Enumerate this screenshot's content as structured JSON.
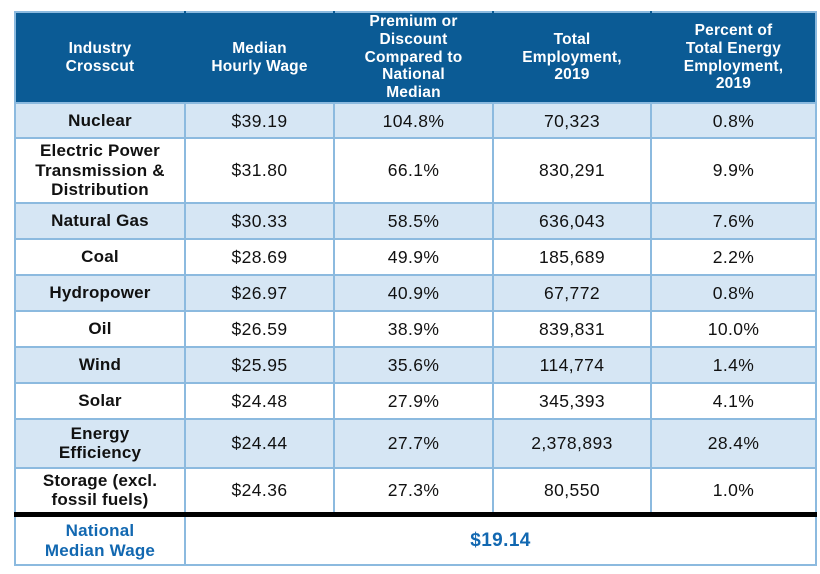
{
  "colors": {
    "header_bg": "#0B5B95",
    "header_text": "#FFFFFF",
    "row_alt_bg": "#D6E6F4",
    "grid_border": "#8CBADF",
    "separator_bar": "#000000",
    "footer_text": "#1268B1",
    "body_text": "#111111"
  },
  "table": {
    "columns": [
      "Industry\nCrosscut",
      "Median\nHourly Wage",
      "Premium or\nDiscount\nCompared to\nNational\nMedian",
      "Total\nEmployment,\n2019",
      "Percent of\nTotal Energy\nEmployment,\n2019"
    ],
    "rows": [
      {
        "industry": "Nuclear",
        "wage": "$39.19",
        "premium": "104.8%",
        "employment": "70,323",
        "share": "0.8%"
      },
      {
        "industry": "Electric Power\nTransmission &\nDistribution",
        "wage": "$31.80",
        "premium": "66.1%",
        "employment": "830,291",
        "share": "9.9%"
      },
      {
        "industry": "Natural Gas",
        "wage": "$30.33",
        "premium": "58.5%",
        "employment": "636,043",
        "share": "7.6%"
      },
      {
        "industry": "Coal",
        "wage": "$28.69",
        "premium": "49.9%",
        "employment": "185,689",
        "share": "2.2%"
      },
      {
        "industry": "Hydropower",
        "wage": "$26.97",
        "premium": "40.9%",
        "employment": "67,772",
        "share": "0.8%"
      },
      {
        "industry": "Oil",
        "wage": "$26.59",
        "premium": "38.9%",
        "employment": "839,831",
        "share": "10.0%"
      },
      {
        "industry": "Wind",
        "wage": "$25.95",
        "premium": "35.6%",
        "employment": "114,774",
        "share": "1.4%"
      },
      {
        "industry": "Solar",
        "wage": "$24.48",
        "premium": "27.9%",
        "employment": "345,393",
        "share": "4.1%"
      },
      {
        "industry": "Energy\nEfficiency",
        "wage": "$24.44",
        "premium": "27.7%",
        "employment": "2,378,893",
        "share": "28.4%"
      },
      {
        "industry": "Storage (excl.\nfossil fuels)",
        "wage": "$24.36",
        "premium": "27.3%",
        "employment": "80,550",
        "share": "1.0%"
      }
    ],
    "footer": {
      "label": "National\nMedian Wage",
      "value": "$19.14"
    }
  },
  "chart_data": {
    "type": "table",
    "columns": [
      "Industry Crosscut",
      "Median Hourly Wage",
      "Premium or Discount Compared to National Median",
      "Total Employment, 2019",
      "Percent of Total Energy Employment, 2019"
    ],
    "rows": [
      [
        "Nuclear",
        "$39.19",
        "104.8%",
        "70,323",
        "0.8%"
      ],
      [
        "Electric Power Transmission & Distribution",
        "$31.80",
        "66.1%",
        "830,291",
        "9.9%"
      ],
      [
        "Natural Gas",
        "$30.33",
        "58.5%",
        "636,043",
        "7.6%"
      ],
      [
        "Coal",
        "$28.69",
        "49.9%",
        "185,689",
        "2.2%"
      ],
      [
        "Hydropower",
        "$26.97",
        "40.9%",
        "67,772",
        "0.8%"
      ],
      [
        "Oil",
        "$26.59",
        "38.9%",
        "839,831",
        "10.0%"
      ],
      [
        "Wind",
        "$25.95",
        "35.6%",
        "114,774",
        "1.4%"
      ],
      [
        "Solar",
        "$24.48",
        "27.9%",
        "345,393",
        "4.1%"
      ],
      [
        "Energy Efficiency",
        "$24.44",
        "27.7%",
        "2,378,893",
        "28.4%"
      ],
      [
        "Storage (excl. fossil fuels)",
        "$24.36",
        "27.3%",
        "80,550",
        "1.0%"
      ]
    ],
    "footer_row": [
      "National Median Wage",
      "$19.14"
    ],
    "layout": "grid on; alternating light-blue row shading; thick black rule above footer row"
  }
}
